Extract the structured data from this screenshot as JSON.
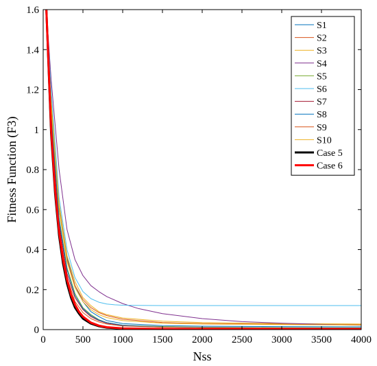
{
  "chart_data": {
    "type": "line",
    "title": "",
    "xlabel": "Nss",
    "ylabel": "Fitness Function (F3)",
    "xlim": [
      0,
      4000
    ],
    "ylim": [
      0,
      1.6
    ],
    "xticks": [
      0,
      500,
      1000,
      1500,
      2000,
      2500,
      3000,
      3500,
      4000
    ],
    "yticks": [
      0,
      0.2,
      0.4,
      0.6,
      0.8,
      1,
      1.2,
      1.4,
      1.6
    ],
    "grid": false,
    "legend_position": "top-right",
    "series": [
      {
        "name": "S1",
        "color": "#0072BD",
        "width": 1,
        "x": [
          40,
          100,
          200,
          300,
          400,
          500,
          600,
          700,
          800,
          1000,
          1500,
          2000,
          3000,
          4000
        ],
        "y": [
          1.6,
          1.15,
          0.62,
          0.36,
          0.22,
          0.14,
          0.09,
          0.065,
          0.045,
          0.03,
          0.02,
          0.017,
          0.015,
          0.014
        ]
      },
      {
        "name": "S2",
        "color": "#D95319",
        "width": 1,
        "x": [
          40,
          100,
          200,
          300,
          400,
          500,
          600,
          700,
          800,
          1000,
          1500,
          2000,
          3000,
          4000
        ],
        "y": [
          1.6,
          1.1,
          0.6,
          0.35,
          0.22,
          0.15,
          0.11,
          0.085,
          0.07,
          0.052,
          0.035,
          0.03,
          0.027,
          0.025
        ]
      },
      {
        "name": "S3",
        "color": "#EDB120",
        "width": 1,
        "x": [
          40,
          100,
          200,
          300,
          400,
          500,
          600,
          700,
          800,
          1000,
          1500,
          2000,
          3000,
          4000
        ],
        "y": [
          1.6,
          1.15,
          0.63,
          0.37,
          0.24,
          0.16,
          0.12,
          0.09,
          0.075,
          0.058,
          0.042,
          0.035,
          0.03,
          0.028
        ]
      },
      {
        "name": "S4",
        "color": "#7E2F8E",
        "width": 1,
        "x": [
          40,
          100,
          200,
          300,
          400,
          500,
          600,
          700,
          800,
          1000,
          1200,
          1500,
          2000,
          2500,
          3000,
          3500,
          4000
        ],
        "y": [
          1.6,
          1.25,
          0.8,
          0.5,
          0.35,
          0.27,
          0.22,
          0.19,
          0.165,
          0.13,
          0.105,
          0.08,
          0.055,
          0.04,
          0.032,
          0.026,
          0.022
        ]
      },
      {
        "name": "S5",
        "color": "#77AC30",
        "width": 1,
        "x": [
          40,
          100,
          200,
          300,
          400,
          500,
          600,
          700,
          800,
          1000,
          1500,
          2000,
          3000,
          4000
        ],
        "y": [
          1.6,
          1.1,
          0.56,
          0.31,
          0.18,
          0.11,
          0.075,
          0.05,
          0.035,
          0.022,
          0.015,
          0.012,
          0.01,
          0.009
        ]
      },
      {
        "name": "S6",
        "color": "#4DBEEE",
        "width": 1,
        "x": [
          40,
          100,
          200,
          300,
          400,
          500,
          600,
          700,
          800,
          900,
          1000,
          1200,
          1500,
          2000,
          3000,
          4000
        ],
        "y": [
          1.6,
          1.2,
          0.66,
          0.4,
          0.26,
          0.19,
          0.155,
          0.137,
          0.128,
          0.124,
          0.122,
          0.121,
          0.12,
          0.12,
          0.12,
          0.12
        ]
      },
      {
        "name": "S7",
        "color": "#A2142F",
        "width": 1,
        "x": [
          40,
          100,
          200,
          300,
          400,
          500,
          600,
          700,
          800,
          1000,
          1500,
          2000,
          3000,
          4000
        ],
        "y": [
          1.6,
          1.05,
          0.53,
          0.28,
          0.16,
          0.1,
          0.065,
          0.045,
          0.032,
          0.02,
          0.012,
          0.01,
          0.008,
          0.007
        ]
      },
      {
        "name": "S8",
        "color": "#0072BD",
        "width": 1,
        "x": [
          40,
          100,
          200,
          300,
          400,
          500,
          600,
          700,
          800,
          1000,
          1500,
          2000,
          3000,
          4000
        ],
        "y": [
          1.6,
          1.08,
          0.55,
          0.3,
          0.17,
          0.105,
          0.07,
          0.048,
          0.035,
          0.022,
          0.013,
          0.011,
          0.009,
          0.008
        ]
      },
      {
        "name": "S9",
        "color": "#D95319",
        "width": 1,
        "x": [
          40,
          100,
          200,
          300,
          400,
          500,
          600,
          700,
          800,
          1000,
          1500,
          2000,
          3000,
          4000
        ],
        "y": [
          1.6,
          1.0,
          0.5,
          0.26,
          0.14,
          0.085,
          0.055,
          0.038,
          0.028,
          0.018,
          0.012,
          0.01,
          0.008,
          0.007
        ]
      },
      {
        "name": "S10",
        "color": "#EDB120",
        "width": 1,
        "x": [
          40,
          100,
          200,
          300,
          400,
          500,
          600,
          700,
          800,
          1000,
          1500,
          2000,
          3000,
          4000
        ],
        "y": [
          1.6,
          1.12,
          0.6,
          0.34,
          0.21,
          0.14,
          0.1,
          0.075,
          0.06,
          0.045,
          0.032,
          0.028,
          0.025,
          0.023
        ]
      },
      {
        "name": "Case 5",
        "color": "#000000",
        "width": 3,
        "x": [
          40,
          100,
          150,
          200,
          250,
          300,
          350,
          400,
          450,
          500,
          600,
          700,
          800,
          1000,
          1500,
          2000,
          3000,
          4000
        ],
        "y": [
          1.6,
          0.98,
          0.68,
          0.47,
          0.33,
          0.23,
          0.16,
          0.11,
          0.08,
          0.055,
          0.03,
          0.017,
          0.01,
          0.005,
          0.002,
          0.001,
          0.001,
          0.001
        ]
      },
      {
        "name": "Case 6",
        "color": "#FF0000",
        "width": 3,
        "x": [
          40,
          100,
          150,
          200,
          250,
          300,
          350,
          400,
          450,
          500,
          600,
          700,
          800,
          1000,
          1500,
          2000,
          3000,
          4000
        ],
        "y": [
          1.6,
          1.0,
          0.7,
          0.49,
          0.35,
          0.25,
          0.175,
          0.125,
          0.09,
          0.065,
          0.035,
          0.02,
          0.012,
          0.006,
          0.003,
          0.002,
          0.002,
          0.002
        ]
      }
    ]
  }
}
